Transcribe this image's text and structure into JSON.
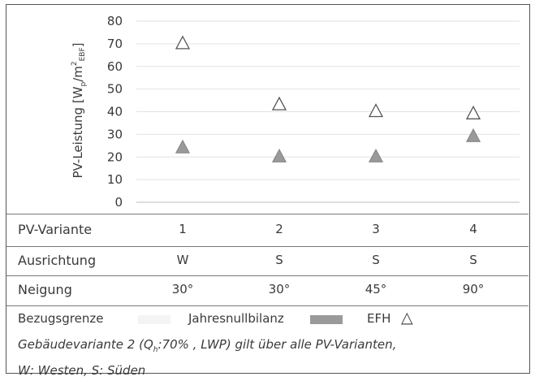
{
  "chart_data": {
    "type": "scatter",
    "ylabel": "PV-Leistung [W",
    "ylabel_sub1": "p",
    "ylabel_mid": "/m",
    "ylabel_sup": "2",
    "ylabel_sub2": "EBF",
    "ylabel_end": "]",
    "ylim": [
      0,
      80
    ],
    "yticks": [
      "0",
      "10",
      "20",
      "30",
      "40",
      "50",
      "60",
      "70",
      "80"
    ],
    "grid": true,
    "categories": [
      "1",
      "2",
      "3",
      "4"
    ],
    "series": [
      {
        "key": "efh",
        "values": [
          70,
          43,
          40,
          39
        ],
        "color": "#ffffff",
        "stroke": "#555555"
      },
      {
        "key": "null",
        "values": [
          24,
          20,
          20,
          29
        ],
        "color": "#9a9a9a",
        "stroke": "#8a8a8a"
      }
    ]
  },
  "table": {
    "rows": [
      {
        "label": "PV-Variante",
        "cells": [
          "1",
          "2",
          "3",
          "4"
        ]
      },
      {
        "label": "Ausrichtung",
        "cells": [
          "W",
          "S",
          "S",
          "S"
        ]
      },
      {
        "label": "Neigung",
        "cells": [
          "30°",
          "30°",
          "45°",
          "90°"
        ]
      }
    ]
  },
  "legend": {
    "bezug": "Bezugsgrenze",
    "bezug_color": "#f4f4f4",
    "jahres": "Jahresnullbilanz",
    "jahres_color": "#9a9a9a",
    "efh": "EFH",
    "efh_symbol": "△"
  },
  "note": {
    "part1": "Gebäudevariante 2 (Q",
    "sub": "h",
    "part2": ":70% , LWP) gilt über alle PV-Varianten,",
    "line2": "W: Westen, S: Süden"
  }
}
